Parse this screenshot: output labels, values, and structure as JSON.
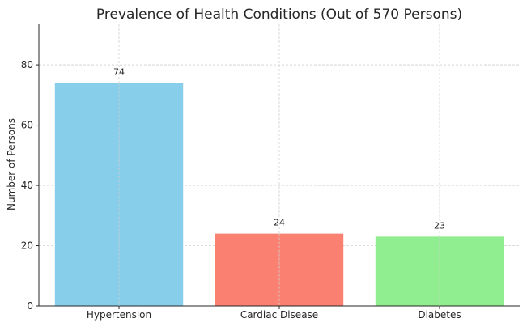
{
  "chart_data": {
    "type": "bar",
    "title": "Prevalence of Health Conditions (Out of 570 Persons)",
    "xlabel": "",
    "ylabel": "Number of Persons",
    "categories": [
      "Hypertension",
      "Cardiac Disease",
      "Diabetes"
    ],
    "values": [
      74,
      24,
      23
    ],
    "colors": [
      "#87ceeb",
      "#fa8072",
      "#90ee90"
    ],
    "ylim": [
      0,
      93.45
    ],
    "yticks": [
      0,
      20,
      40,
      60,
      80
    ],
    "grid": true,
    "data_labels": [
      "74",
      "24",
      "23"
    ]
  }
}
